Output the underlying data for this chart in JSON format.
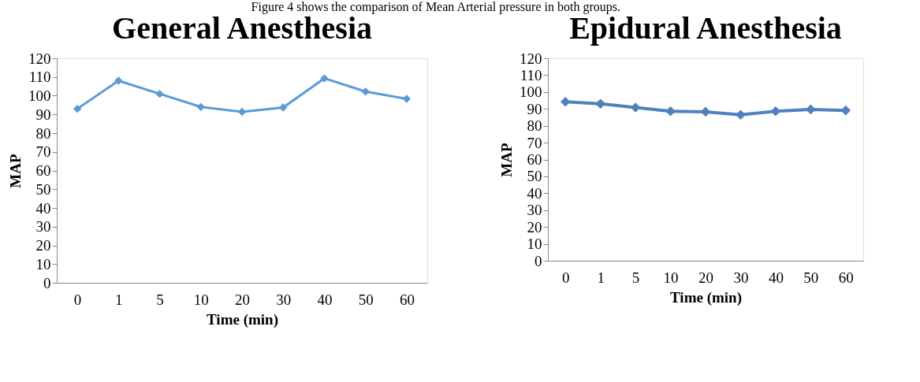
{
  "chart_data": [
    {
      "type": "line",
      "title": "General Anesthesia",
      "xlabel": "Time (min)",
      "ylabel": "MAP",
      "annotations": [
        "Figure 4 shows the comparison of Mean Arterial pressure in both groups."
      ],
      "categories": [
        "0",
        "1",
        "5",
        "10",
        "20",
        "30",
        "40",
        "50",
        "60"
      ],
      "series": [
        {
          "color": "#5b9bd5",
          "values": [
            93,
            108,
            101,
            94,
            91.4,
            93.7,
            109.3,
            102.2,
            98.3
          ]
        }
      ],
      "ylim": [
        0,
        120
      ],
      "yticks": [
        0,
        10,
        20,
        30,
        40,
        50,
        60,
        70,
        80,
        90,
        100,
        110,
        120
      ],
      "grid": false,
      "marker": "diamond",
      "line_style": "solid"
    },
    {
      "type": "line",
      "title": "Epidural Anesthesia",
      "xlabel": "Time (min)",
      "ylabel": "MAP",
      "categories": [
        "0",
        "1",
        "5",
        "10",
        "20",
        "30",
        "40",
        "50",
        "60"
      ],
      "series": [
        {
          "color": "#4f81bd",
          "values": [
            94.2,
            93,
            90.8,
            88.6,
            88.3,
            86.5,
            88.6,
            89.7,
            89.1
          ]
        }
      ],
      "ylim": [
        0,
        120
      ],
      "yticks": [
        0,
        10,
        20,
        30,
        40,
        50,
        60,
        70,
        80,
        90,
        100,
        110,
        120
      ],
      "grid": false,
      "marker": "diamond",
      "line_style": "solid"
    }
  ]
}
